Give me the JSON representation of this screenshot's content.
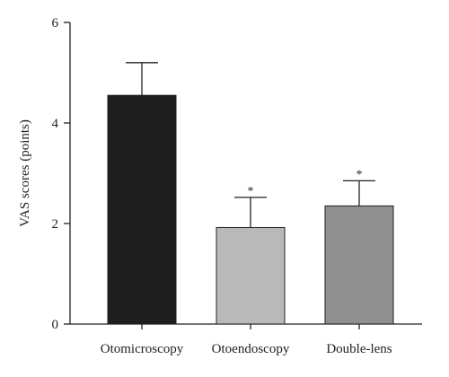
{
  "chart_data": {
    "type": "bar",
    "categories": [
      "Otomicroscopy",
      "Otoendoscopy",
      "Double-lens"
    ],
    "values": [
      4.55,
      1.92,
      2.35
    ],
    "error_upper": [
      0.65,
      0.6,
      0.5
    ],
    "significance": [
      "",
      "*",
      "*"
    ],
    "bar_colors": [
      "#1e1e1e",
      "#b9b9b9",
      "#8f8f8f"
    ],
    "title": "",
    "xlabel": "",
    "ylabel": "VAS scores (points)",
    "ylim": [
      0,
      6
    ],
    "yticks": [
      0,
      2,
      4,
      6
    ],
    "grid": false
  }
}
